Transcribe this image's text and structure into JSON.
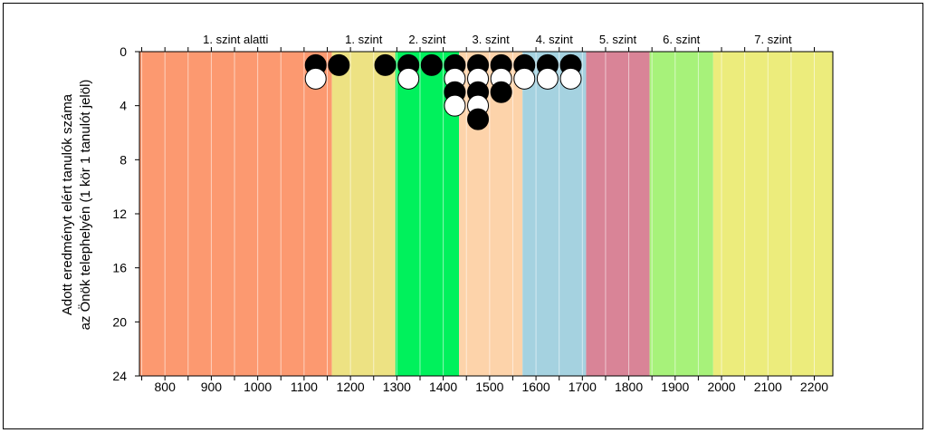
{
  "chart_data": {
    "type": "scatter",
    "ylabel_line1": "Adott eredményt elért tanulók száma",
    "ylabel_line2": "az Önök telephelyén (1 kör 1 tanulót jelöl)",
    "x_range": [
      745,
      2240
    ],
    "y_range": [
      0,
      24
    ],
    "y_inverted": true,
    "x_ticks": [
      800,
      900,
      1000,
      1100,
      1200,
      1300,
      1400,
      1500,
      1600,
      1700,
      1800,
      1900,
      2000,
      2100,
      2200
    ],
    "y_ticks": [
      0,
      4,
      8,
      12,
      16,
      20,
      24
    ],
    "grid_step": 50,
    "levels": [
      {
        "label": "1. szint alatti",
        "from": 745,
        "to": 1160,
        "color": "#fc9970"
      },
      {
        "label": "1. szint",
        "from": 1160,
        "to": 1297,
        "color": "#ede283"
      },
      {
        "label": "2. szint",
        "from": 1297,
        "to": 1434,
        "color": "#00f15c"
      },
      {
        "label": "3. szint",
        "from": 1434,
        "to": 1571,
        "color": "#fdd3aa"
      },
      {
        "label": "4. szint",
        "from": 1571,
        "to": 1708,
        "color": "#a5d2e0"
      },
      {
        "label": "5. szint",
        "from": 1708,
        "to": 1845,
        "color": "#d98497"
      },
      {
        "label": "6. szint",
        "from": 1845,
        "to": 1982,
        "color": "#a7f27a"
      },
      {
        "label": "7. szint",
        "from": 1982,
        "to": 2240,
        "color": "#ecec7c"
      }
    ],
    "points": [
      {
        "x": 1125,
        "y": 1,
        "fill": "black"
      },
      {
        "x": 1125,
        "y": 2,
        "fill": "white"
      },
      {
        "x": 1175,
        "y": 1,
        "fill": "black"
      },
      {
        "x": 1275,
        "y": 1,
        "fill": "black"
      },
      {
        "x": 1325,
        "y": 1,
        "fill": "black"
      },
      {
        "x": 1325,
        "y": 2,
        "fill": "white"
      },
      {
        "x": 1375,
        "y": 1,
        "fill": "black"
      },
      {
        "x": 1425,
        "y": 1,
        "fill": "black"
      },
      {
        "x": 1425,
        "y": 2,
        "fill": "white"
      },
      {
        "x": 1425,
        "y": 3,
        "fill": "black"
      },
      {
        "x": 1425,
        "y": 4,
        "fill": "white"
      },
      {
        "x": 1475,
        "y": 1,
        "fill": "black"
      },
      {
        "x": 1475,
        "y": 2,
        "fill": "white"
      },
      {
        "x": 1475,
        "y": 3,
        "fill": "black"
      },
      {
        "x": 1475,
        "y": 4,
        "fill": "white"
      },
      {
        "x": 1475,
        "y": 5,
        "fill": "black"
      },
      {
        "x": 1525,
        "y": 1,
        "fill": "black"
      },
      {
        "x": 1525,
        "y": 2,
        "fill": "white"
      },
      {
        "x": 1525,
        "y": 3,
        "fill": "black"
      },
      {
        "x": 1575,
        "y": 1,
        "fill": "black"
      },
      {
        "x": 1575,
        "y": 2,
        "fill": "white"
      },
      {
        "x": 1625,
        "y": 1,
        "fill": "black"
      },
      {
        "x": 1625,
        "y": 2,
        "fill": "white"
      },
      {
        "x": 1675,
        "y": 1,
        "fill": "black"
      },
      {
        "x": 1675,
        "y": 2,
        "fill": "white"
      }
    ]
  }
}
